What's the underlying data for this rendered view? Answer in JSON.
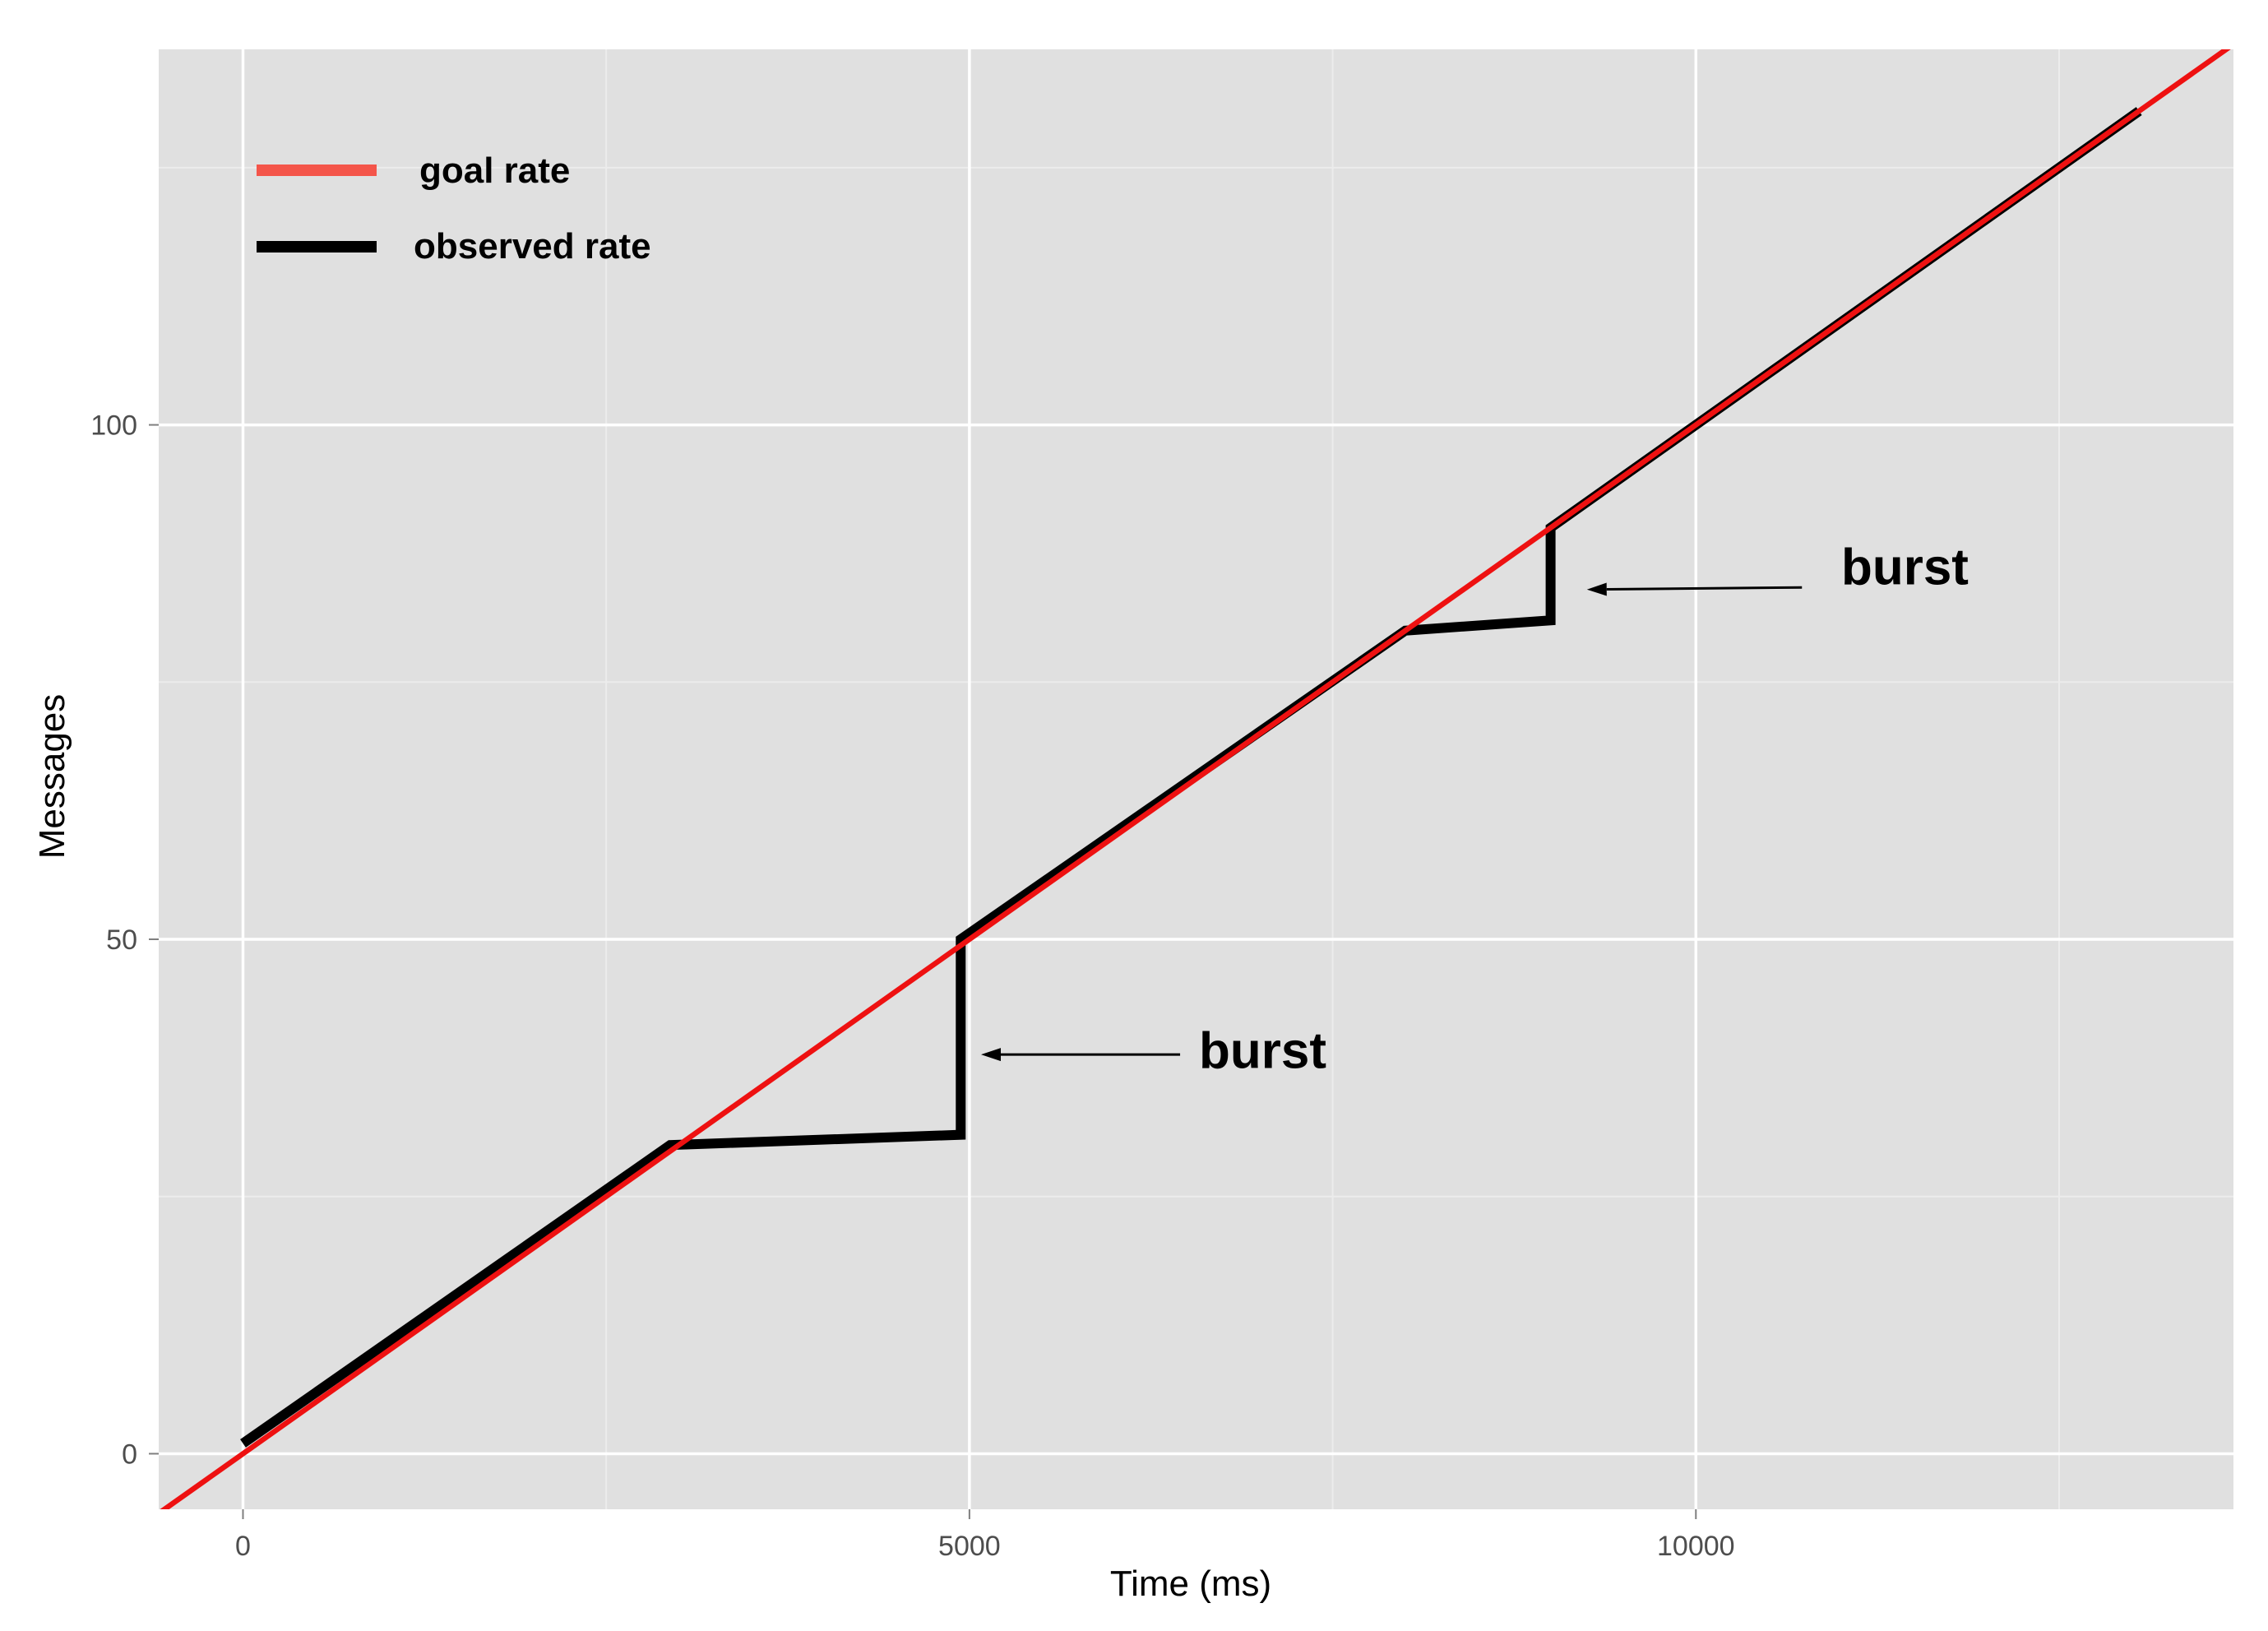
{
  "chart_data": {
    "type": "line",
    "title": "",
    "xlabel": "Time (ms)",
    "ylabel": "Messages",
    "xlim": [
      -580,
      13700
    ],
    "ylim": [
      -5.4,
      136.5
    ],
    "x_ticks": [
      0,
      5000,
      10000
    ],
    "x_tick_labels": [
      "0",
      "5000",
      "10000"
    ],
    "x_minor_ticks": [
      2500,
      7500,
      12500
    ],
    "y_ticks": [
      0,
      50,
      100
    ],
    "y_tick_labels": [
      "0",
      "50",
      "100"
    ],
    "y_minor_ticks": [
      25,
      75,
      125
    ],
    "grid": true,
    "legend_position": "top-left",
    "series": [
      {
        "name": "goal rate",
        "kind": "reference-line",
        "color": "#ee1111",
        "slope": 0.01,
        "intercept": 0
      },
      {
        "name": "observed rate",
        "color": "#000000",
        "x": [
          0,
          2940,
          4940,
          4940,
          8000,
          9000,
          9000,
          13050
        ],
        "y": [
          1,
          30,
          31,
          50,
          80,
          81,
          90,
          130.5
        ]
      }
    ],
    "legend": {
      "goal_rate_color": "#f4554a",
      "observed_rate_color": "#000000"
    },
    "annotations": [
      {
        "text": "burst",
        "text_x": 6580,
        "text_y": 37.5,
        "arrow_from": [
          6450,
          38.8
        ],
        "arrow_to": [
          5080,
          38.8
        ]
      },
      {
        "text": "burst",
        "text_x": 11000,
        "text_y": 84.5,
        "arrow_from": [
          10730,
          84.2
        ],
        "arrow_to": [
          9250,
          84.0
        ]
      }
    ],
    "colors": {
      "panel_background": "#e0e0e0",
      "grid_major": "#ffffff",
      "grid_minor": "#ececec"
    }
  }
}
